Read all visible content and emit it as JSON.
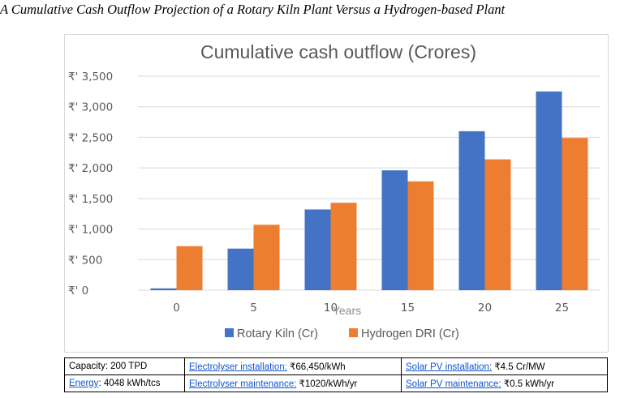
{
  "caption": "A Cumulative Cash Outflow Projection of a Rotary Kiln Plant Versus a Hydrogen-based Plant",
  "colors": {
    "rotary": "#4472c4",
    "hydrogen": "#ed7d31",
    "grid": "#d9d9d9",
    "text": "#595959",
    "link": "#1155cc"
  },
  "chart_data": {
    "type": "bar",
    "title": "Cumulative cash outflow (Crores)",
    "xlabel": "Years",
    "ylabel": "",
    "categories": [
      "0",
      "5",
      "10",
      "15",
      "20",
      "25"
    ],
    "series": [
      {
        "name": "Rotary Kiln (Cr)",
        "values": [
          30,
          680,
          1320,
          1960,
          2600,
          3250
        ]
      },
      {
        "name": "Hydrogen DRI (Cr)",
        "values": [
          720,
          1070,
          1430,
          1780,
          2140,
          2490
        ]
      }
    ],
    "ylim": [
      0,
      3500
    ],
    "yticks": [
      0,
      500,
      1000,
      1500,
      2000,
      2500,
      3000,
      3500
    ],
    "ytick_labels": [
      "₹' 0",
      "₹' 500",
      "₹' 1,000",
      "₹' 1,500",
      "₹' 2,000",
      "₹' 2,500",
      "₹' 3,000",
      "₹' 3,500"
    ],
    "grid": true,
    "legend_position": "bottom"
  },
  "specs": {
    "row1": {
      "capacity": "Capacity: 200 TPD",
      "electrolyser_install_label": "Electrolyser installation:",
      "electrolyser_install_value": " ₹66,450/kWh",
      "solar_install_label": "Solar PV installation:",
      "solar_install_value": " ₹4.5 Cr/MW"
    },
    "row2": {
      "energy_label": "Energy",
      "energy_value": ": 4048 kWh/tcs",
      "electrolyser_maint_label": "Electrolyser maintenance:",
      "electrolyser_maint_value": " ₹1020/kWh/yr",
      "solar_maint_label": "Solar PV maintenance:",
      "solar_maint_value": " ₹0.5 kWh/yr"
    }
  }
}
